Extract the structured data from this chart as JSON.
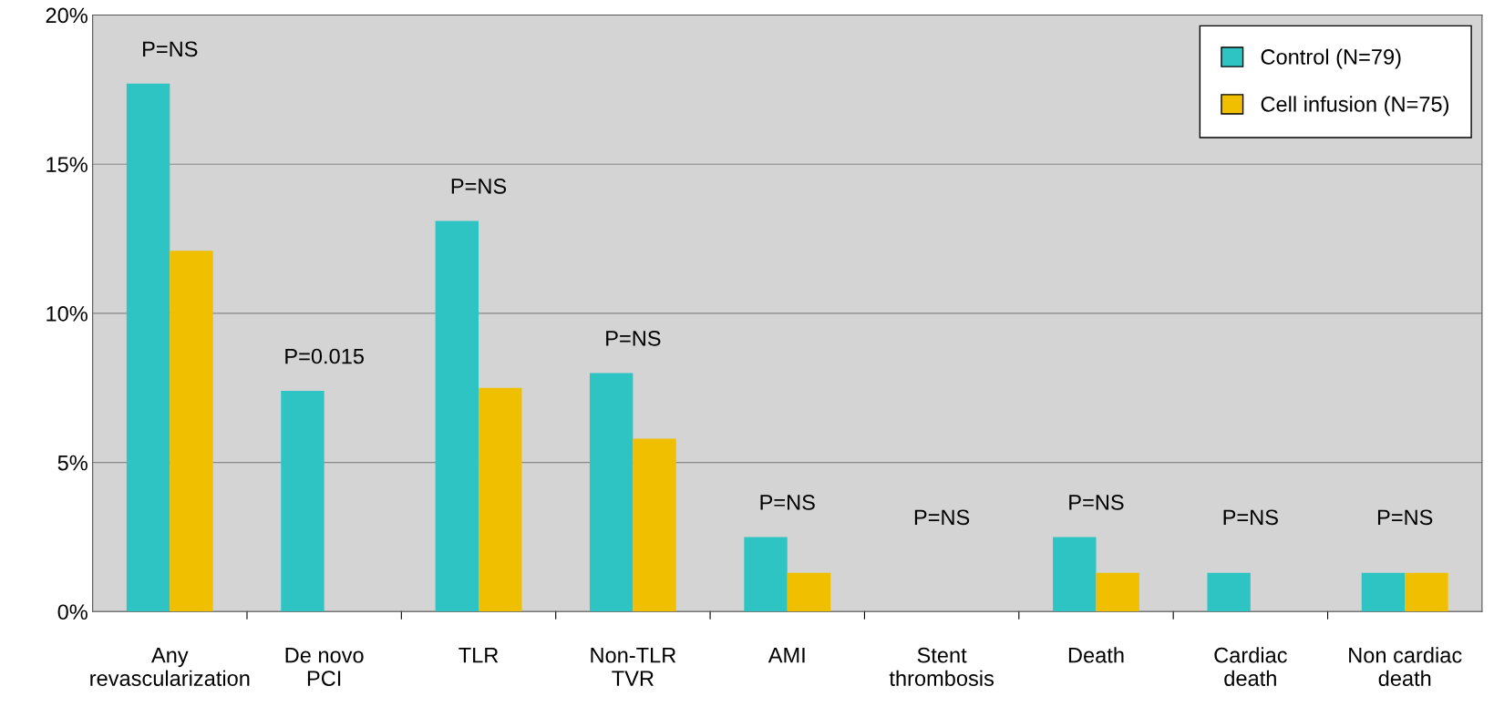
{
  "chart_data": {
    "type": "bar",
    "categories": [
      "Any\nrevascularization",
      "De novo\nPCI",
      "TLR",
      "Non-TLR\nTVR",
      "AMI",
      "Stent\nthrombosis",
      "Death",
      "Cardiac\ndeath",
      "Non cardiac\ndeath"
    ],
    "series": [
      {
        "name": "Control (N=79)",
        "color": "#2fc4c4",
        "values": [
          17.7,
          7.4,
          13.1,
          8.0,
          2.5,
          0,
          2.5,
          1.3,
          1.3
        ]
      },
      {
        "name": "Cell infusion (N=75)",
        "color": "#f0c000",
        "values": [
          12.1,
          0,
          7.5,
          5.8,
          1.3,
          0,
          1.3,
          0,
          1.3
        ]
      }
    ],
    "ylim": [
      0,
      20
    ],
    "yticks": [
      {
        "value": 0,
        "label": "0%"
      },
      {
        "value": 5,
        "label": "5%"
      },
      {
        "value": 10,
        "label": "10%"
      },
      {
        "value": 15,
        "label": "15%"
      },
      {
        "value": 20,
        "label": "20%"
      }
    ],
    "annotations": [
      "P=NS",
      "P=0.015",
      "P=NS",
      "P=NS",
      "P=NS",
      "P=NS",
      "P=NS",
      "P=NS",
      "P=NS"
    ],
    "grid": "y",
    "legend": "top right"
  }
}
